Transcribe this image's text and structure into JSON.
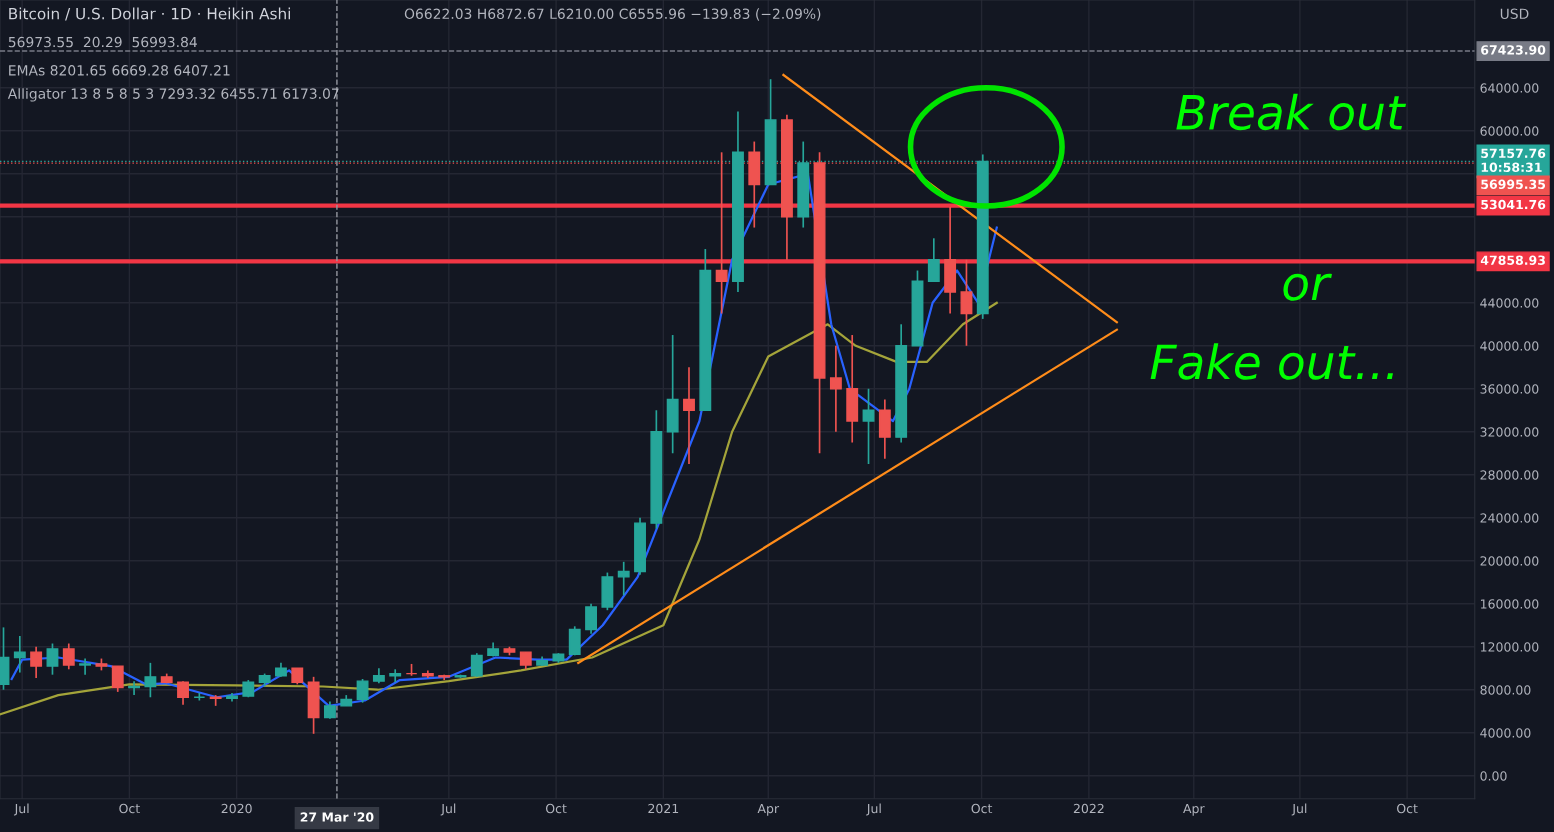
{
  "chart_data": {
    "type": "candlestick",
    "title": "Bitcoin / U.S. Dollar · 1D · Heikin Ashi",
    "x": [
      "2019-06-15",
      "2019-06-29",
      "2019-07-13",
      "2019-07-27",
      "2019-08-10",
      "2019-08-24",
      "2019-09-07",
      "2019-09-21",
      "2019-10-05",
      "2019-10-19",
      "2019-11-02",
      "2019-11-16",
      "2019-11-30",
      "2019-12-14",
      "2019-12-28",
      "2020-01-11",
      "2020-01-25",
      "2020-02-08",
      "2020-02-22",
      "2020-03-07",
      "2020-03-21",
      "2020-04-04",
      "2020-04-18",
      "2020-05-02",
      "2020-05-16",
      "2020-05-30",
      "2020-06-13",
      "2020-06-27",
      "2020-07-11",
      "2020-07-25",
      "2020-08-08",
      "2020-08-22",
      "2020-09-05",
      "2020-09-19",
      "2020-10-03",
      "2020-10-17",
      "2020-10-31",
      "2020-11-14",
      "2020-11-28",
      "2020-12-12",
      "2020-12-26",
      "2021-01-09",
      "2021-01-23",
      "2021-02-06",
      "2021-02-20",
      "2021-03-06",
      "2021-03-20",
      "2021-04-03",
      "2021-04-17",
      "2021-05-01",
      "2021-05-15",
      "2021-05-29",
      "2021-06-12",
      "2021-06-26",
      "2021-07-10",
      "2021-07-24",
      "2021-08-07",
      "2021-08-21",
      "2021-09-04",
      "2021-09-18",
      "2021-10-02"
    ],
    "ohlc": [
      [
        8500,
        13800,
        8000,
        11000
      ],
      [
        11000,
        13000,
        9600,
        11500
      ],
      [
        11500,
        12000,
        9100,
        10200
      ],
      [
        10200,
        12300,
        9400,
        11800
      ],
      [
        11800,
        12300,
        9900,
        10300
      ],
      [
        10300,
        10900,
        9400,
        10400
      ],
      [
        10400,
        10900,
        9800,
        10200
      ],
      [
        10200,
        10200,
        7800,
        8200
      ],
      [
        8200,
        8800,
        7500,
        8300
      ],
      [
        8300,
        10500,
        7300,
        9200
      ],
      [
        9200,
        9500,
        8600,
        8700
      ],
      [
        8700,
        8800,
        6600,
        7300
      ],
      [
        7300,
        7700,
        7000,
        7300
      ],
      [
        7300,
        7500,
        6500,
        7200
      ],
      [
        7200,
        7700,
        6900,
        7400
      ],
      [
        7400,
        8900,
        7300,
        8700
      ],
      [
        8700,
        9500,
        8300,
        9300
      ],
      [
        9300,
        10500,
        9200,
        10000
      ],
      [
        10000,
        10000,
        8500,
        8700
      ],
      [
        8700,
        9200,
        3900,
        5400
      ],
      [
        5400,
        6900,
        5300,
        6500
      ],
      [
        6500,
        7500,
        6500,
        7100
      ],
      [
        7100,
        9000,
        6800,
        8800
      ],
      [
        8800,
        10000,
        8600,
        9300
      ],
      [
        9300,
        9900,
        8700,
        9500
      ],
      [
        9500,
        10400,
        9300,
        9500
      ],
      [
        9500,
        9800,
        9100,
        9300
      ],
      [
        9300,
        9400,
        8900,
        9200
      ],
      [
        9200,
        9400,
        9100,
        9300
      ],
      [
        9300,
        11400,
        9200,
        11200
      ],
      [
        11200,
        12400,
        11100,
        11800
      ],
      [
        11800,
        12000,
        11200,
        11500
      ],
      [
        11500,
        11500,
        9900,
        10300
      ],
      [
        10300,
        11100,
        10200,
        10700
      ],
      [
        10700,
        11400,
        10500,
        11300
      ],
      [
        11300,
        13900,
        11200,
        13600
      ],
      [
        13600,
        16000,
        13200,
        15700
      ],
      [
        15700,
        18900,
        15400,
        18500
      ],
      [
        18500,
        19900,
        16800,
        19000
      ],
      [
        19000,
        24000,
        18700,
        23500
      ],
      [
        23500,
        34000,
        23000,
        32000
      ],
      [
        32000,
        41000,
        30000,
        35000
      ],
      [
        35000,
        38000,
        29000,
        34000
      ],
      [
        34000,
        49000,
        34000,
        47000
      ],
      [
        47000,
        58000,
        43000,
        46000
      ],
      [
        46000,
        61800,
        45000,
        58000
      ],
      [
        58000,
        59000,
        51000,
        55000
      ],
      [
        55000,
        64800,
        55000,
        61000
      ],
      [
        61000,
        61500,
        48000,
        52000
      ],
      [
        52000,
        59000,
        51000,
        57000
      ],
      [
        57000,
        58000,
        30000,
        37000
      ],
      [
        37000,
        40000,
        32000,
        36000
      ],
      [
        36000,
        41000,
        31000,
        33000
      ],
      [
        33000,
        36000,
        29000,
        34000
      ],
      [
        34000,
        35000,
        29500,
        31500
      ],
      [
        31500,
        42000,
        31000,
        40000
      ],
      [
        40000,
        47000,
        40000,
        46000
      ],
      [
        46000,
        50000,
        46000,
        48000
      ],
      [
        48000,
        52900,
        43000,
        45000
      ],
      [
        45000,
        48000,
        40000,
        43000
      ],
      [
        43000,
        57800,
        42500,
        57157.76
      ]
    ],
    "colors": [
      "#26a69a",
      "#26a69a",
      "#ef5350",
      "#26a69a",
      "#ef5350",
      "#26a69a",
      "#ef5350",
      "#ef5350",
      "#26a69a",
      "#26a69a",
      "#ef5350",
      "#ef5350",
      "#26a69a",
      "#ef5350",
      "#26a69a",
      "#26a69a",
      "#26a69a",
      "#26a69a",
      "#ef5350",
      "#ef5350",
      "#26a69a",
      "#26a69a",
      "#26a69a",
      "#26a69a",
      "#26a69a",
      "#ef5350",
      "#ef5350",
      "#ef5350",
      "#26a69a",
      "#26a69a",
      "#26a69a",
      "#ef5350",
      "#ef5350",
      "#26a69a",
      "#26a69a",
      "#26a69a",
      "#26a69a",
      "#26a69a",
      "#26a69a",
      "#26a69a",
      "#26a69a",
      "#26a69a",
      "#ef5350",
      "#26a69a",
      "#ef5350",
      "#26a69a",
      "#ef5350",
      "#26a69a",
      "#ef5350",
      "#26a69a",
      "#ef5350",
      "#ef5350",
      "#ef5350",
      "#26a69a",
      "#ef5350",
      "#26a69a",
      "#26a69a",
      "#26a69a",
      "#ef5350",
      "#ef5350",
      "#26a69a"
    ],
    "series": [
      {
        "type": "line",
        "color": "#a4a43a",
        "x": [
          "2019-06-12",
          "2019-08-01",
          "2019-10-01",
          "2020-01-01",
          "2020-03-15",
          "2020-05-01",
          "2020-07-01",
          "2020-09-01",
          "2020-11-01",
          "2021-01-01",
          "2021-02-01",
          "2021-03-01",
          "2021-04-01",
          "2021-05-22",
          "2021-06-15",
          "2021-07-20",
          "2021-08-15",
          "2021-09-15",
          "2021-10-14"
        ],
        "values": [
          5700,
          7500,
          8500,
          8400,
          8300,
          8000,
          8800,
          9800,
          11000,
          14000,
          22000,
          32000,
          39000,
          42000,
          40000,
          38500,
          38500,
          42000,
          44000
        ]
      },
      {
        "type": "line",
        "color": "#2962ff",
        "x": [
          "2019-06-22",
          "2019-07-01",
          "2019-08-01",
          "2019-09-15",
          "2019-10-15",
          "2019-11-01",
          "2019-12-15",
          "2020-01-15",
          "2020-02-15",
          "2020-03-20",
          "2020-04-20",
          "2020-05-20",
          "2020-07-01",
          "2020-08-10",
          "2020-09-15",
          "2020-10-10",
          "2020-11-10",
          "2020-12-10",
          "2021-01-10",
          "2021-02-01",
          "2021-03-01",
          "2021-04-01",
          "2021-05-05",
          "2021-05-25",
          "2021-06-10",
          "2021-07-17",
          "2021-07-31",
          "2021-08-20",
          "2021-09-10",
          "2021-09-28",
          "2021-10-14"
        ],
        "values": [
          9000,
          10800,
          11000,
          10200,
          8500,
          8600,
          7300,
          7800,
          9800,
          6500,
          7000,
          8900,
          9200,
          11000,
          10800,
          10800,
          14000,
          18500,
          27000,
          33000,
          48000,
          55000,
          56000,
          42000,
          36000,
          33000,
          36000,
          44000,
          47000,
          44000,
          51000
        ]
      },
      {
        "type": "line",
        "color": "#ff8c1a",
        "x": [
          "2021-04-14",
          "2022-01-25"
        ],
        "values": [
          65200,
          42200
        ]
      },
      {
        "type": "line",
        "color": "#ff8c1a",
        "x": [
          "2020-10-20",
          "2022-01-25"
        ],
        "values": [
          10500,
          41500
        ]
      }
    ],
    "xlim": [
      "2019-06-12",
      "2022-11-28"
    ],
    "xticks": [
      {
        "value": "2019-07-01",
        "label": "Jul"
      },
      {
        "value": "2019-10-01",
        "label": "Oct"
      },
      {
        "value": "2020-01-01",
        "label": "2020"
      },
      {
        "value": "2020-07-01",
        "label": "Jul"
      },
      {
        "value": "2020-10-01",
        "label": "Oct"
      },
      {
        "value": "2021-01-01",
        "label": "2021"
      },
      {
        "value": "2021-04-01",
        "label": "Apr"
      },
      {
        "value": "2021-07-01",
        "label": "Jul"
      },
      {
        "value": "2021-10-01",
        "label": "Oct"
      },
      {
        "value": "2022-01-01",
        "label": "2022"
      },
      {
        "value": "2022-04-01",
        "label": "Apr"
      },
      {
        "value": "2022-07-01",
        "label": "Jul"
      },
      {
        "value": "2022-10-01",
        "label": "Oct"
      }
    ],
    "ylim": [
      -2140,
      72170
    ],
    "yticks": [
      {
        "value": 0,
        "label": "0.00"
      },
      {
        "value": 4000,
        "label": "4000.00"
      },
      {
        "value": 8000,
        "label": "8000.00"
      },
      {
        "value": 12000,
        "label": "12000.00"
      },
      {
        "value": 16000,
        "label": "16000.00"
      },
      {
        "value": 20000,
        "label": "20000.00"
      },
      {
        "value": 24000,
        "label": "24000.00"
      },
      {
        "value": 28000,
        "label": "28000.00"
      },
      {
        "value": 32000,
        "label": "32000.00"
      },
      {
        "value": 36000,
        "label": "36000.00"
      },
      {
        "value": 40000,
        "label": "40000.00"
      },
      {
        "value": 44000,
        "label": "44000.00"
      },
      {
        "value": 48000,
        "label": null
      },
      {
        "value": 52000,
        "label": null
      },
      {
        "value": 56000,
        "label": null
      },
      {
        "value": 60000,
        "label": "60000.00"
      },
      {
        "value": 64000,
        "label": "64000.00"
      }
    ],
    "grid": true,
    "ref_lines": [
      {
        "axis": "y",
        "value": 67423.9,
        "label": "67423.90",
        "color": "#787b86",
        "line_style": "dashed"
      },
      {
        "axis": "y",
        "value": 57157.76,
        "label": "57157.76\n10:58:31",
        "color": "#26a69a",
        "line_style": "dotted"
      },
      {
        "axis": "y",
        "value": 56995.35,
        "label": "56995.35",
        "color": "#ef5350",
        "line_style": "dotted"
      },
      {
        "axis": "y",
        "value": 53041.76,
        "label": "53041.76",
        "color": "#f23645",
        "line_style": "solid"
      },
      {
        "axis": "y",
        "value": 47858.93,
        "label": "47858.93",
        "color": "#f23645",
        "line_style": "solid"
      },
      {
        "axis": "x",
        "value": "2020-03-27",
        "label": "27 Mar '20",
        "color": "#9598a1",
        "line_style": "dashed"
      }
    ],
    "annotations": [
      "O6622.03 H6872.67 L6210.00 C6555.96 −139.83 (−2.09%)",
      "56973.55  20.29  56993.84",
      "EMAs 8201.65 6669.28 6407.21",
      "Alligator 13 8 5 8 5 3 7293.32 6455.71 6173.07",
      "USD",
      "Break out",
      "or",
      "Fake out..."
    ]
  }
}
